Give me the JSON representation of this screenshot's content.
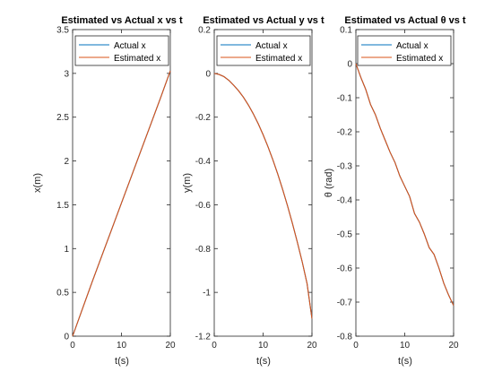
{
  "figure": {
    "background": "#ffffff"
  },
  "colors": {
    "actual": "#0072BD",
    "estimated": "#D95319",
    "axis": "#262626"
  },
  "chart_data": [
    {
      "type": "line",
      "title": "Estimated vs Actual x vs t",
      "xlabel": "t(s)",
      "ylabel": "x(m)",
      "xlim": [
        0,
        20
      ],
      "ylim": [
        0,
        3.5
      ],
      "xticks": [
        0,
        10,
        20
      ],
      "yticks": [
        0,
        0.5,
        1,
        1.5,
        2,
        2.5,
        3,
        3.5
      ],
      "legend": {
        "location": "top-left",
        "entries": [
          "Actual x",
          "Estimated x"
        ]
      },
      "grid": false,
      "series": [
        {
          "name": "Actual x",
          "color": "#0072BD",
          "x": [
            0,
            2,
            4,
            6,
            8,
            10,
            12,
            14,
            16,
            18,
            20
          ],
          "y": [
            0,
            0.31,
            0.62,
            0.92,
            1.22,
            1.52,
            1.82,
            2.12,
            2.42,
            2.72,
            3.03
          ]
        },
        {
          "name": "Estimated x",
          "color": "#D95319",
          "x": [
            0,
            2,
            4,
            6,
            8,
            10,
            12,
            14,
            16,
            18,
            20
          ],
          "y": [
            0,
            0.31,
            0.62,
            0.92,
            1.22,
            1.52,
            1.82,
            2.12,
            2.42,
            2.72,
            3.03
          ]
        }
      ]
    },
    {
      "type": "line",
      "title": "Estimated vs Actual y vs t",
      "xlabel": "t(s)",
      "ylabel": "y(m)",
      "xlim": [
        0,
        20
      ],
      "ylim": [
        -1.2,
        0.2
      ],
      "xticks": [
        0,
        10,
        20
      ],
      "yticks": [
        -1.2,
        -1,
        -0.8,
        -0.6,
        -0.4,
        -0.2,
        0,
        0.2
      ],
      "legend": {
        "location": "top-left",
        "entries": [
          "Actual x",
          "Estimated x"
        ]
      },
      "grid": false,
      "series": [
        {
          "name": "Actual x",
          "color": "#0072BD",
          "x": [
            0,
            1,
            2,
            3,
            4,
            5,
            6,
            7,
            8,
            9,
            10,
            11,
            12,
            13,
            14,
            15,
            16,
            17,
            18,
            19,
            20
          ],
          "y": [
            0,
            -0.005,
            -0.015,
            -0.032,
            -0.055,
            -0.08,
            -0.11,
            -0.145,
            -0.185,
            -0.23,
            -0.28,
            -0.335,
            -0.395,
            -0.46,
            -0.53,
            -0.605,
            -0.685,
            -0.77,
            -0.86,
            -0.96,
            -1.12
          ]
        },
        {
          "name": "Estimated x",
          "color": "#D95319",
          "x": [
            0,
            1,
            2,
            3,
            4,
            5,
            6,
            7,
            8,
            9,
            10,
            11,
            12,
            13,
            14,
            15,
            16,
            17,
            18,
            19,
            20
          ],
          "y": [
            0,
            -0.005,
            -0.015,
            -0.032,
            -0.055,
            -0.08,
            -0.11,
            -0.145,
            -0.185,
            -0.23,
            -0.28,
            -0.335,
            -0.395,
            -0.46,
            -0.53,
            -0.605,
            -0.685,
            -0.77,
            -0.86,
            -0.96,
            -1.12
          ]
        }
      ]
    },
    {
      "type": "line",
      "title": "Estimated vs Actual θ vs t",
      "xlabel": "t(s)",
      "ylabel": "θ (rad)",
      "xlim": [
        0,
        20
      ],
      "ylim": [
        -0.8,
        0.1
      ],
      "xticks": [
        0,
        10,
        20
      ],
      "yticks": [
        -0.8,
        -0.7,
        -0.6,
        -0.5,
        -0.4,
        -0.3,
        -0.2,
        -0.1,
        0,
        0.1
      ],
      "legend": {
        "location": "top-left",
        "entries": [
          "Actual x",
          "Estimated x"
        ]
      },
      "grid": false,
      "series": [
        {
          "name": "Actual x",
          "color": "#0072BD",
          "x": [
            0,
            1,
            2,
            3,
            4,
            5,
            6,
            7,
            8,
            9,
            10,
            11,
            12,
            13,
            14,
            15,
            16,
            17,
            18,
            19,
            20
          ],
          "y": [
            0,
            -0.04,
            -0.075,
            -0.12,
            -0.15,
            -0.19,
            -0.225,
            -0.26,
            -0.29,
            -0.33,
            -0.36,
            -0.39,
            -0.44,
            -0.465,
            -0.5,
            -0.54,
            -0.56,
            -0.6,
            -0.645,
            -0.68,
            -0.71
          ]
        },
        {
          "name": "Estimated x",
          "color": "#D95319",
          "x": [
            0,
            1,
            2,
            3,
            4,
            5,
            6,
            7,
            8,
            9,
            10,
            11,
            12,
            13,
            14,
            15,
            16,
            17,
            18,
            19,
            20
          ],
          "y": [
            0,
            -0.04,
            -0.075,
            -0.12,
            -0.15,
            -0.19,
            -0.225,
            -0.26,
            -0.29,
            -0.33,
            -0.36,
            -0.39,
            -0.44,
            -0.465,
            -0.5,
            -0.54,
            -0.56,
            -0.6,
            -0.645,
            -0.68,
            -0.71
          ]
        }
      ]
    }
  ]
}
